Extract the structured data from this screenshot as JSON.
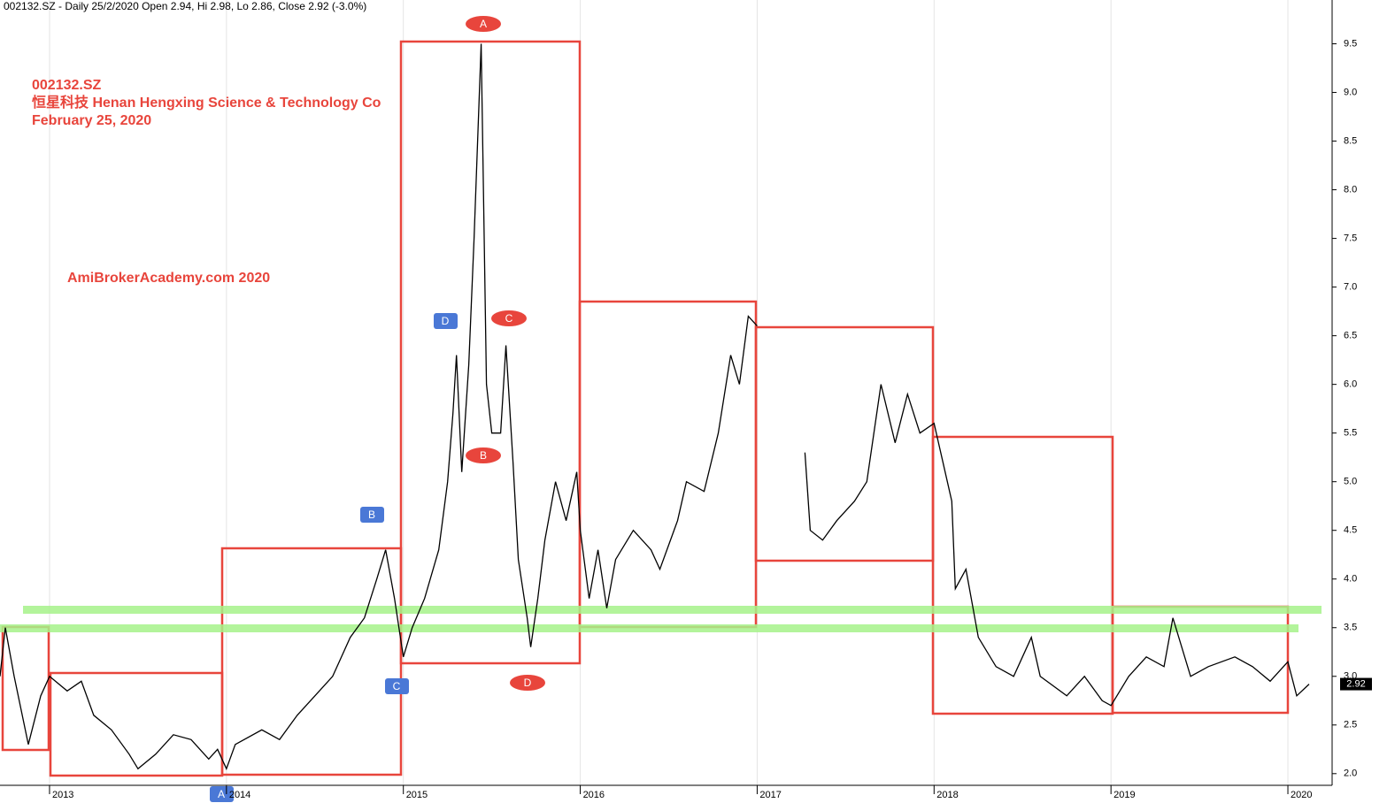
{
  "chart_data": {
    "type": "line",
    "header": "002132.SZ - Daily 25/2/2020 Open 2.94, Hi 2.98, Lo 2.86, Close 2.92 (-3.0%)",
    "title_lines": [
      "002132.SZ",
      "恒星科技  Henan Hengxing Science & Technology Co",
      "February 25, 2020"
    ],
    "watermark": "AmiBrokerAcademy.com  2020",
    "marker_labels": [
      "A",
      "C",
      "B",
      "D",
      "D",
      "B",
      "C",
      "A"
    ],
    "xlim": [
      2012.72,
      2020.25
    ],
    "ylim": [
      1.88,
      9.95
    ],
    "xticks": [
      2013,
      2014,
      2015,
      2016,
      2017,
      2018,
      2019,
      2020
    ],
    "yticks": [
      {
        "value": 2,
        "label": "2.0"
      },
      2.5,
      {
        "value": 3,
        "label": "3.0"
      },
      3.5,
      {
        "value": 4,
        "label": "4.0"
      },
      4.5,
      {
        "value": 5,
        "label": "5.0"
      },
      5.5,
      {
        "value": 6,
        "label": "6.0"
      },
      6.5,
      {
        "value": 7,
        "label": "7.0"
      },
      7.5,
      {
        "value": 8,
        "label": "8.0"
      },
      8.5,
      {
        "value": 9,
        "label": "9.0"
      },
      9.5
    ],
    "x": [
      2012.72,
      2012.75,
      2012.8,
      2012.88,
      2012.95,
      2013.0,
      2013.1,
      2013.18,
      2013.25,
      2013.35,
      2013.45,
      2013.5,
      2013.6,
      2013.7,
      2013.8,
      2013.9,
      2013.95,
      2014.0,
      2014.05,
      2014.2,
      2014.3,
      2014.4,
      2014.5,
      2014.6,
      2014.7,
      2014.78,
      2014.85,
      2014.9,
      2014.95,
      2015.0,
      2015.05,
      2015.12,
      2015.2,
      2015.25,
      2015.28,
      2015.3,
      2015.33,
      2015.37,
      2015.4,
      2015.44,
      2015.47,
      2015.5,
      2015.55,
      2015.58,
      2015.62,
      2015.65,
      2015.7,
      2015.72,
      2015.76,
      2015.8,
      2015.86,
      2015.92,
      2015.98,
      2016.0,
      2016.05,
      2016.1,
      2016.15,
      2016.2,
      2016.3,
      2016.4,
      2016.45,
      2016.55,
      2016.6,
      2016.7,
      2016.78,
      2016.85,
      2016.9,
      2016.95,
      2017.0,
      2017.1,
      2017.27,
      2017.3,
      2017.37,
      2017.45,
      2017.55,
      2017.62,
      2017.7,
      2017.78,
      2017.85,
      2017.92,
      2018.0,
      2018.05,
      2018.1,
      2018.12,
      2018.18,
      2018.25,
      2018.35,
      2018.45,
      2018.55,
      2018.6,
      2018.75,
      2018.85,
      2018.95,
      2019.0,
      2019.1,
      2019.2,
      2019.3,
      2019.35,
      2019.45,
      2019.55,
      2019.7,
      2019.8,
      2019.9,
      2020.0,
      2020.05,
      2020.12
    ],
    "series": [
      {
        "name": "002132.SZ",
        "color": "#000000",
        "values": [
          3.0,
          3.5,
          3.0,
          2.3,
          2.8,
          3.0,
          2.85,
          2.95,
          2.6,
          2.45,
          2.2,
          2.05,
          2.2,
          2.4,
          2.35,
          2.15,
          2.25,
          2.05,
          2.3,
          2.45,
          2.35,
          2.6,
          2.8,
          3.0,
          3.4,
          3.6,
          4.0,
          4.3,
          3.8,
          3.2,
          3.5,
          3.8,
          4.3,
          5.0,
          5.7,
          6.3,
          5.1,
          6.2,
          7.5,
          9.5,
          6.0,
          5.5,
          5.5,
          6.4,
          5.2,
          4.2,
          3.6,
          3.3,
          3.8,
          4.4,
          5.0,
          4.6,
          5.1,
          4.5,
          3.8,
          4.3,
          3.7,
          4.2,
          4.5,
          4.3,
          4.1,
          4.6,
          5.0,
          4.9,
          5.5,
          6.3,
          6.0,
          6.7,
          6.6,
          null,
          5.3,
          4.5,
          4.4,
          4.6,
          4.8,
          5.0,
          6.0,
          5.4,
          5.9,
          5.5,
          5.6,
          5.2,
          4.8,
          3.9,
          4.1,
          3.4,
          3.1,
          3.0,
          3.4,
          3.0,
          2.8,
          3.0,
          2.75,
          2.7,
          3.0,
          3.2,
          3.1,
          3.6,
          3.0,
          3.1,
          3.2,
          3.1,
          2.95,
          3.15,
          2.8,
          2.92
        ]
      }
    ]
  }
}
